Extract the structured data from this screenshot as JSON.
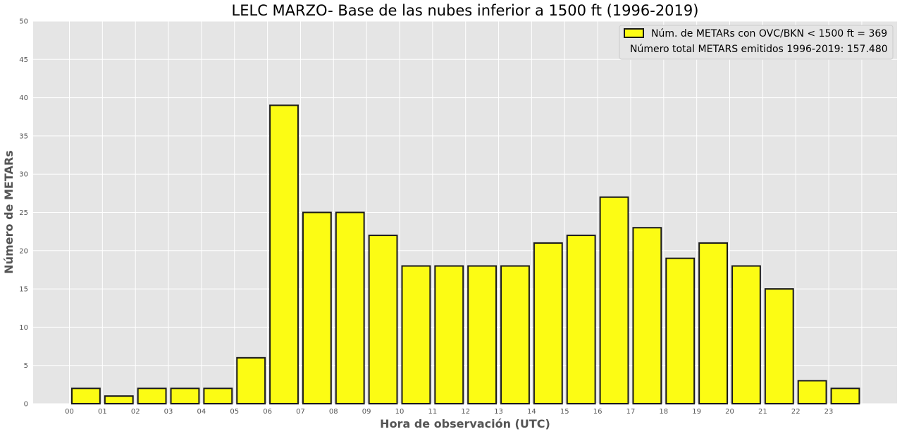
{
  "chart_data": {
    "type": "bar",
    "title": "LELC MARZO- Base de las nubes inferior a 1500 ft (1996-2019)",
    "xlabel": "Hora de observación (UTC)",
    "ylabel": "Número de METARs",
    "categories": [
      "00",
      "01",
      "02",
      "03",
      "04",
      "05",
      "06",
      "07",
      "08",
      "09",
      "10",
      "11",
      "12",
      "13",
      "14",
      "15",
      "16",
      "17",
      "18",
      "19",
      "20",
      "21",
      "22",
      "23"
    ],
    "values": [
      2,
      1,
      2,
      2,
      2,
      6,
      39,
      25,
      25,
      22,
      18,
      18,
      18,
      18,
      21,
      22,
      27,
      23,
      19,
      21,
      18,
      15,
      3,
      2
    ],
    "ylim": [
      0,
      50
    ],
    "yticks": [
      0,
      5,
      10,
      15,
      20,
      25,
      30,
      35,
      40,
      45,
      50
    ],
    "grid": true,
    "legend_position": "top-right",
    "legend": {
      "series_label": "Núm. de METARs con OVC/BKN < 1500 ft = 369",
      "note": "Número total METARS emitidos 1996-2019: 157.480"
    },
    "colors": {
      "bar_fill": "#fcfc14",
      "bar_edge": "#1a1a1a",
      "plot_background": "#e5e5e5",
      "grid": "#ffffff"
    }
  }
}
